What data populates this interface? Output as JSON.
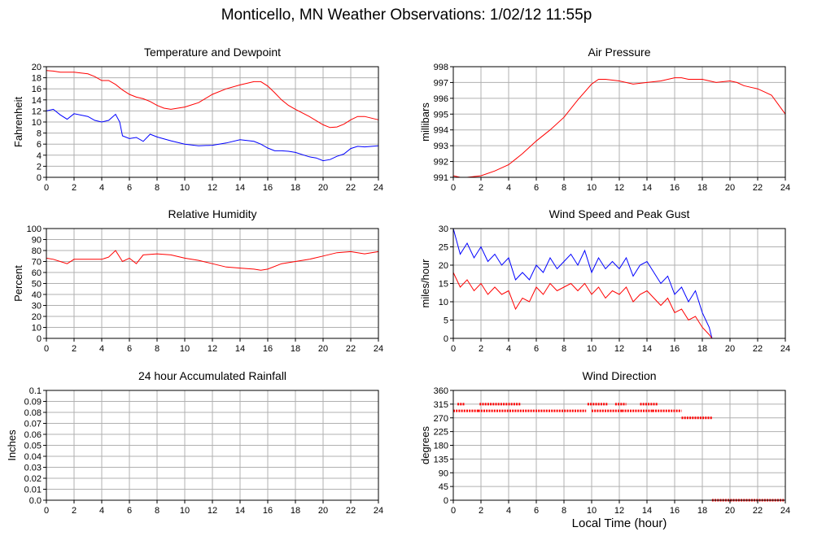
{
  "title": "Monticello, MN Weather Observations: 1/02/12 11:55p",
  "global_xlabel": "Local Time (hour)",
  "colors": {
    "red": "#ff0000",
    "blue": "#0000ff",
    "grid": "#b0b0b0",
    "frame": "#000000"
  },
  "chart_data": [
    {
      "id": "temp",
      "type": "line",
      "title": "Temperature and Dewpoint",
      "xlabel": "",
      "ylabel": "Fahrenheit",
      "xlim": [
        0,
        24
      ],
      "ylim": [
        0,
        20
      ],
      "xticks": [
        0,
        2,
        4,
        6,
        8,
        10,
        12,
        14,
        16,
        18,
        20,
        22,
        24
      ],
      "yticks": [
        0,
        2,
        4,
        6,
        8,
        10,
        12,
        14,
        16,
        18,
        20
      ],
      "grid": true,
      "series": [
        {
          "color": "#ff0000",
          "x": [
            0,
            0.5,
            1,
            2,
            3,
            3.5,
            4,
            4.5,
            5,
            5.5,
            6,
            6.5,
            7,
            7.5,
            8,
            8.5,
            9,
            10,
            11,
            12,
            13,
            14,
            15,
            15.5,
            16,
            16.5,
            17,
            17.5,
            18,
            19,
            20,
            20.5,
            21,
            21.5,
            22,
            22.5,
            23,
            24
          ],
          "y": [
            19.3,
            19.2,
            19,
            19,
            18.7,
            18.2,
            17.5,
            17.5,
            16.8,
            15.8,
            15,
            14.5,
            14.2,
            13.7,
            13,
            12.5,
            12.3,
            12.7,
            13.5,
            15,
            16,
            16.7,
            17.3,
            17.3,
            16.5,
            15.3,
            14,
            13,
            12.3,
            11,
            9.5,
            9,
            9.1,
            9.6,
            10.4,
            11,
            11,
            10.4
          ]
        },
        {
          "color": "#0000ff",
          "x": [
            0,
            0.5,
            1,
            1.5,
            2,
            3,
            3.5,
            4,
            4.5,
            5,
            5.3,
            5.5,
            6,
            6.5,
            7,
            7.5,
            8,
            9,
            10,
            11,
            12,
            13,
            14,
            15,
            15.5,
            16,
            16.5,
            17,
            17.5,
            18,
            19,
            19.5,
            20,
            20.5,
            21,
            21.5,
            22,
            22.5,
            23,
            24
          ],
          "y": [
            12,
            12.3,
            11.3,
            10.5,
            11.5,
            11,
            10.3,
            10,
            10.3,
            11.4,
            10,
            7.5,
            7,
            7.2,
            6.5,
            7.8,
            7.3,
            6.6,
            6,
            5.7,
            5.8,
            6.2,
            6.8,
            6.5,
            6,
            5.3,
            4.8,
            4.8,
            4.7,
            4.5,
            3.7,
            3.5,
            3,
            3.2,
            3.8,
            4.2,
            5.2,
            5.6,
            5.5,
            5.7
          ]
        }
      ]
    },
    {
      "id": "pressure",
      "type": "line",
      "title": "Air Pressure",
      "xlabel": "",
      "ylabel": "millibars",
      "xlim": [
        0,
        24
      ],
      "ylim": [
        991,
        998
      ],
      "xticks": [
        0,
        2,
        4,
        6,
        8,
        10,
        12,
        14,
        16,
        18,
        20,
        22,
        24
      ],
      "yticks": [
        991,
        992,
        993,
        994,
        995,
        996,
        997,
        998
      ],
      "grid": true,
      "series": [
        {
          "color": "#ff0000",
          "x": [
            0,
            0.5,
            1,
            2,
            3,
            4,
            5,
            6,
            7,
            8,
            9,
            10,
            10.5,
            11,
            12,
            13,
            14,
            15,
            16,
            16.5,
            17,
            18,
            19,
            20,
            20.5,
            21,
            21.5,
            22,
            22.5,
            23,
            24
          ],
          "y": [
            991.1,
            991.0,
            991.0,
            991.1,
            991.4,
            991.8,
            992.5,
            993.3,
            994.0,
            994.8,
            995.9,
            996.9,
            997.2,
            997.2,
            997.1,
            996.9,
            997.0,
            997.1,
            997.3,
            997.3,
            997.2,
            997.2,
            997.0,
            997.1,
            997.0,
            996.8,
            996.7,
            996.6,
            996.4,
            996.2,
            995.0
          ]
        }
      ]
    },
    {
      "id": "humidity",
      "type": "line",
      "title": "Relative Humidity",
      "xlabel": "",
      "ylabel": "Percent",
      "xlim": [
        0,
        24
      ],
      "ylim": [
        0,
        100
      ],
      "xticks": [
        0,
        2,
        4,
        6,
        8,
        10,
        12,
        14,
        16,
        18,
        20,
        22,
        24
      ],
      "yticks": [
        0,
        10,
        20,
        30,
        40,
        50,
        60,
        70,
        80,
        90,
        100
      ],
      "grid": true,
      "series": [
        {
          "color": "#ff0000",
          "x": [
            0,
            0.5,
            1,
            1.5,
            2,
            3,
            4,
            4.5,
            5,
            5.5,
            6,
            6.5,
            7,
            8,
            9,
            10,
            11,
            12,
            13,
            14,
            15,
            15.5,
            16,
            17,
            18,
            19,
            20,
            21,
            22,
            23,
            24
          ],
          "y": [
            73,
            72,
            70,
            68,
            72,
            72,
            72,
            74,
            80,
            70,
            73,
            68,
            76,
            77,
            76,
            73,
            71,
            68,
            65,
            64,
            63,
            62,
            63,
            68,
            70,
            72,
            75,
            78,
            79,
            77,
            79
          ]
        }
      ]
    },
    {
      "id": "wind",
      "type": "line",
      "title": "Wind Speed and Peak Gust",
      "xlabel": "",
      "ylabel": "miles/hour",
      "xlim": [
        0,
        24
      ],
      "ylim": [
        0,
        30
      ],
      "xticks": [
        0,
        2,
        4,
        6,
        8,
        10,
        12,
        14,
        16,
        18,
        20,
        22,
        24
      ],
      "yticks": [
        0,
        5,
        10,
        15,
        20,
        25,
        30
      ],
      "grid": true,
      "series": [
        {
          "color": "#0000ff",
          "x": [
            0,
            0.5,
            1,
            1.5,
            2,
            2.5,
            3,
            3.5,
            4,
            4.5,
            5,
            5.5,
            6,
            6.5,
            7,
            7.5,
            8,
            8.5,
            9,
            9.5,
            10,
            10.5,
            11,
            11.5,
            12,
            12.5,
            13,
            13.5,
            14,
            14.5,
            15,
            15.5,
            16,
            16.5,
            17,
            17.5,
            18,
            18.5,
            18.7,
            19,
            20,
            22,
            24
          ],
          "y": [
            30,
            23,
            26,
            22,
            25,
            21,
            23,
            20,
            22,
            16,
            18,
            16,
            20,
            18,
            22,
            19,
            21,
            23,
            20,
            24,
            18,
            22,
            19,
            21,
            19,
            22,
            17,
            20,
            21,
            18,
            15,
            17,
            12,
            14,
            10,
            13,
            7,
            3,
            0,
            0,
            0,
            0,
            0
          ]
        },
        {
          "color": "#ff0000",
          "x": [
            0,
            0.5,
            1,
            1.5,
            2,
            2.5,
            3,
            3.5,
            4,
            4.5,
            5,
            5.5,
            6,
            6.5,
            7,
            7.5,
            8,
            8.5,
            9,
            9.5,
            10,
            10.5,
            11,
            11.5,
            12,
            12.5,
            13,
            13.5,
            14,
            14.5,
            15,
            15.5,
            16,
            16.5,
            17,
            17.5,
            18,
            18.5,
            18.7,
            19,
            20,
            22,
            24
          ],
          "y": [
            18,
            14,
            16,
            13,
            15,
            12,
            14,
            12,
            13,
            8,
            11,
            10,
            14,
            12,
            15,
            13,
            14,
            15,
            13,
            15,
            12,
            14,
            11,
            13,
            12,
            14,
            10,
            12,
            13,
            11,
            9,
            11,
            7,
            8,
            5,
            6,
            3,
            1,
            0,
            0,
            0,
            0,
            0
          ]
        }
      ]
    },
    {
      "id": "rain",
      "type": "line",
      "title": "24 hour Accumulated Rainfall",
      "xlabel": "",
      "ylabel": "Inches",
      "xlim": [
        0,
        24
      ],
      "ylim": [
        0,
        0.1
      ],
      "xticks": [
        0,
        2,
        4,
        6,
        8,
        10,
        12,
        14,
        16,
        18,
        20,
        22,
        24
      ],
      "yticks": [
        0,
        0.01,
        0.02,
        0.03,
        0.04,
        0.05,
        0.06,
        0.07,
        0.08,
        0.09,
        0.1
      ],
      "ytick_labels": [
        "0.0",
        "0.01",
        "0.02",
        "0.03",
        "0.04",
        "0.05",
        "0.06",
        "0.07",
        "0.08",
        "0.09",
        "0.1"
      ],
      "grid": true,
      "series": [
        {
          "color": "#ff0000",
          "x": [
            0,
            24
          ],
          "y": [
            0,
            0
          ]
        }
      ]
    },
    {
      "id": "direction",
      "type": "scatter",
      "title": "Wind Direction",
      "xlabel": "",
      "ylabel": "degrees",
      "xlim": [
        0,
        24
      ],
      "ylim": [
        0,
        360
      ],
      "xticks": [
        0,
        2,
        4,
        6,
        8,
        10,
        12,
        14,
        16,
        18,
        20,
        22,
        24
      ],
      "yticks": [
        0,
        45,
        90,
        135,
        180,
        225,
        270,
        315,
        360
      ],
      "grid": true,
      "series": [
        {
          "color": "#ff0000",
          "segments": [
            [
              0.0,
              1.8,
              293
            ],
            [
              1.8,
              5.0,
              293
            ],
            [
              5.0,
              9.6,
              293
            ],
            [
              10.0,
              12.2,
              293
            ],
            [
              12.2,
              14.4,
              293
            ],
            [
              14.4,
              16.5,
              293
            ],
            [
              16.5,
              18.7,
              270
            ],
            [
              18.7,
              24.0,
              0
            ],
            [
              0.3,
              0.8,
              315
            ],
            [
              1.9,
              4.9,
              315
            ],
            [
              9.7,
              11.2,
              315
            ],
            [
              11.7,
              12.5,
              315
            ],
            [
              13.5,
              14.8,
              315
            ]
          ]
        }
      ]
    }
  ]
}
